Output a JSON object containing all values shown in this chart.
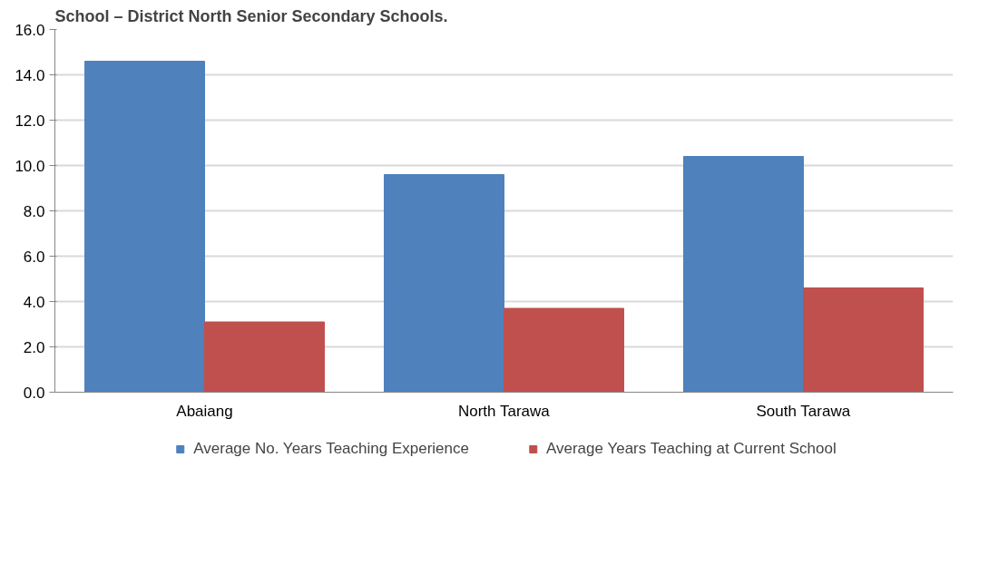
{
  "chart_data": {
    "type": "bar",
    "title": "School – District North Senior Secondary Schools.",
    "categories": [
      "Abaiang",
      "North Tarawa",
      "South Tarawa"
    ],
    "series": [
      {
        "name": "Average No. Years Teaching Experience",
        "color": "#4f81bd",
        "values": [
          14.6,
          9.6,
          10.4
        ]
      },
      {
        "name": "Average Years Teaching at Current School",
        "color": "#c0504d",
        "values": [
          3.1,
          3.7,
          4.6
        ]
      }
    ],
    "ylim": [
      0,
      16
    ],
    "yticks": [
      {
        "value": 0,
        "label": "0.0"
      },
      {
        "value": 2,
        "label": "2.0"
      },
      {
        "value": 4,
        "label": "4.0"
      },
      {
        "value": 6,
        "label": "6.0"
      },
      {
        "value": 8,
        "label": "8.0"
      },
      {
        "value": 10,
        "label": "10.0"
      },
      {
        "value": 12,
        "label": "12.0"
      },
      {
        "value": 14,
        "label": "14.0"
      },
      {
        "value": 16,
        "label": "16.0"
      }
    ],
    "grid": "y",
    "legend": "bottom"
  }
}
